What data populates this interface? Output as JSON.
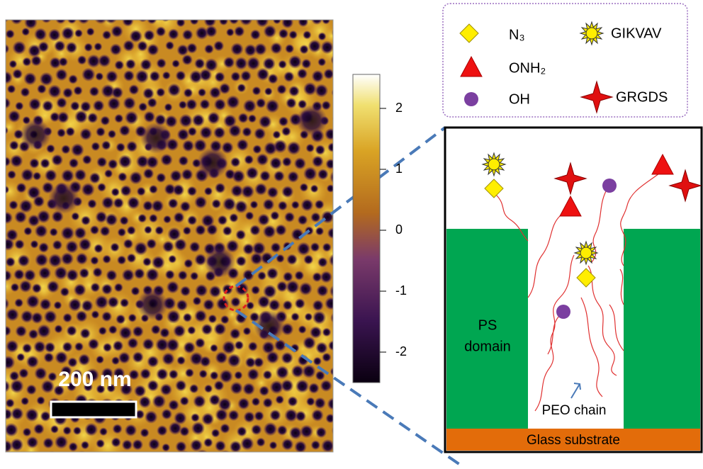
{
  "figure": {
    "scale_bar": "200 nm",
    "colorbar": {
      "lim": [
        -2.5,
        2.5
      ],
      "ticks": [
        2,
        1,
        0,
        -1,
        -2
      ]
    },
    "legend": [
      {
        "label": "N₃"
      },
      {
        "label": "GIKVAV"
      },
      {
        "label": "ONH₂"
      },
      {
        "label": "OH"
      },
      {
        "label": "GRGDS"
      }
    ],
    "schematic": {
      "ps_domain": [
        "PS",
        "domain"
      ],
      "peo_chain": "PEO chain",
      "substrate": "Glass substrate"
    }
  }
}
